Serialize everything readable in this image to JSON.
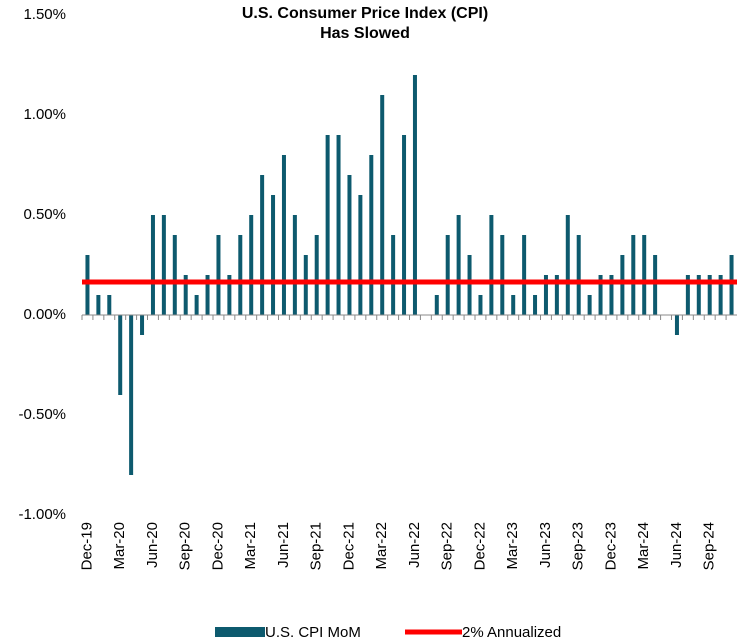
{
  "chart_data": {
    "type": "bar",
    "title": [
      "U.S. Consumer Price Index (CPI)",
      "Has Slowed"
    ],
    "categories": [
      "Dec-19",
      null,
      null,
      "Mar-20",
      null,
      null,
      "Jun-20",
      null,
      null,
      "Sep-20",
      null,
      null,
      "Dec-20",
      null,
      null,
      "Mar-21",
      null,
      null,
      "Jun-21",
      null,
      null,
      "Sep-21",
      null,
      null,
      "Dec-21",
      null,
      null,
      "Mar-22",
      null,
      null,
      "Jun-22",
      null,
      null,
      "Sep-22",
      null,
      null,
      "Dec-22",
      null,
      null,
      "Mar-23",
      null,
      null,
      "Jun-23",
      null,
      null,
      "Sep-23",
      null,
      null,
      "Dec-23",
      null,
      null,
      "Mar-24",
      null,
      null,
      "Jun-24",
      null,
      null,
      "Sep-24",
      null,
      null
    ],
    "series": [
      {
        "name": "U.S. CPI MoM",
        "color": "#0d5a6e",
        "values": [
          0.3,
          0.1,
          0.1,
          -0.4,
          -0.8,
          -0.1,
          0.5,
          0.5,
          0.4,
          0.2,
          0.1,
          0.2,
          0.4,
          0.2,
          0.4,
          0.5,
          0.7,
          0.6,
          0.8,
          0.5,
          0.3,
          0.4,
          0.9,
          0.9,
          0.7,
          0.6,
          0.8,
          1.1,
          0.4,
          0.9,
          1.2,
          0.0,
          0.1,
          0.4,
          0.5,
          0.3,
          0.1,
          0.5,
          0.4,
          0.1,
          0.4,
          0.1,
          0.2,
          0.2,
          0.5,
          0.4,
          0.1,
          0.2,
          0.2,
          0.3,
          0.4,
          0.4,
          0.3,
          0.0,
          -0.1,
          0.2,
          0.2,
          0.2,
          0.2,
          0.3
        ]
      }
    ],
    "reference_line": {
      "name": "2% Annualized",
      "value": 0.165,
      "color": "#ff0000"
    },
    "ylim": [
      -1.0,
      1.5
    ],
    "yticks": [
      {
        "value": -1.0,
        "label": "-1.00%"
      },
      {
        "value": -0.5,
        "label": "-0.50%"
      },
      {
        "value": 0,
        "label": "0.00%"
      },
      {
        "value": 0.5,
        "label": "0.50%"
      },
      {
        "value": 1.0,
        "label": "1.00%"
      },
      {
        "value": 1.5,
        "label": "1.50%"
      }
    ],
    "grid": false
  }
}
